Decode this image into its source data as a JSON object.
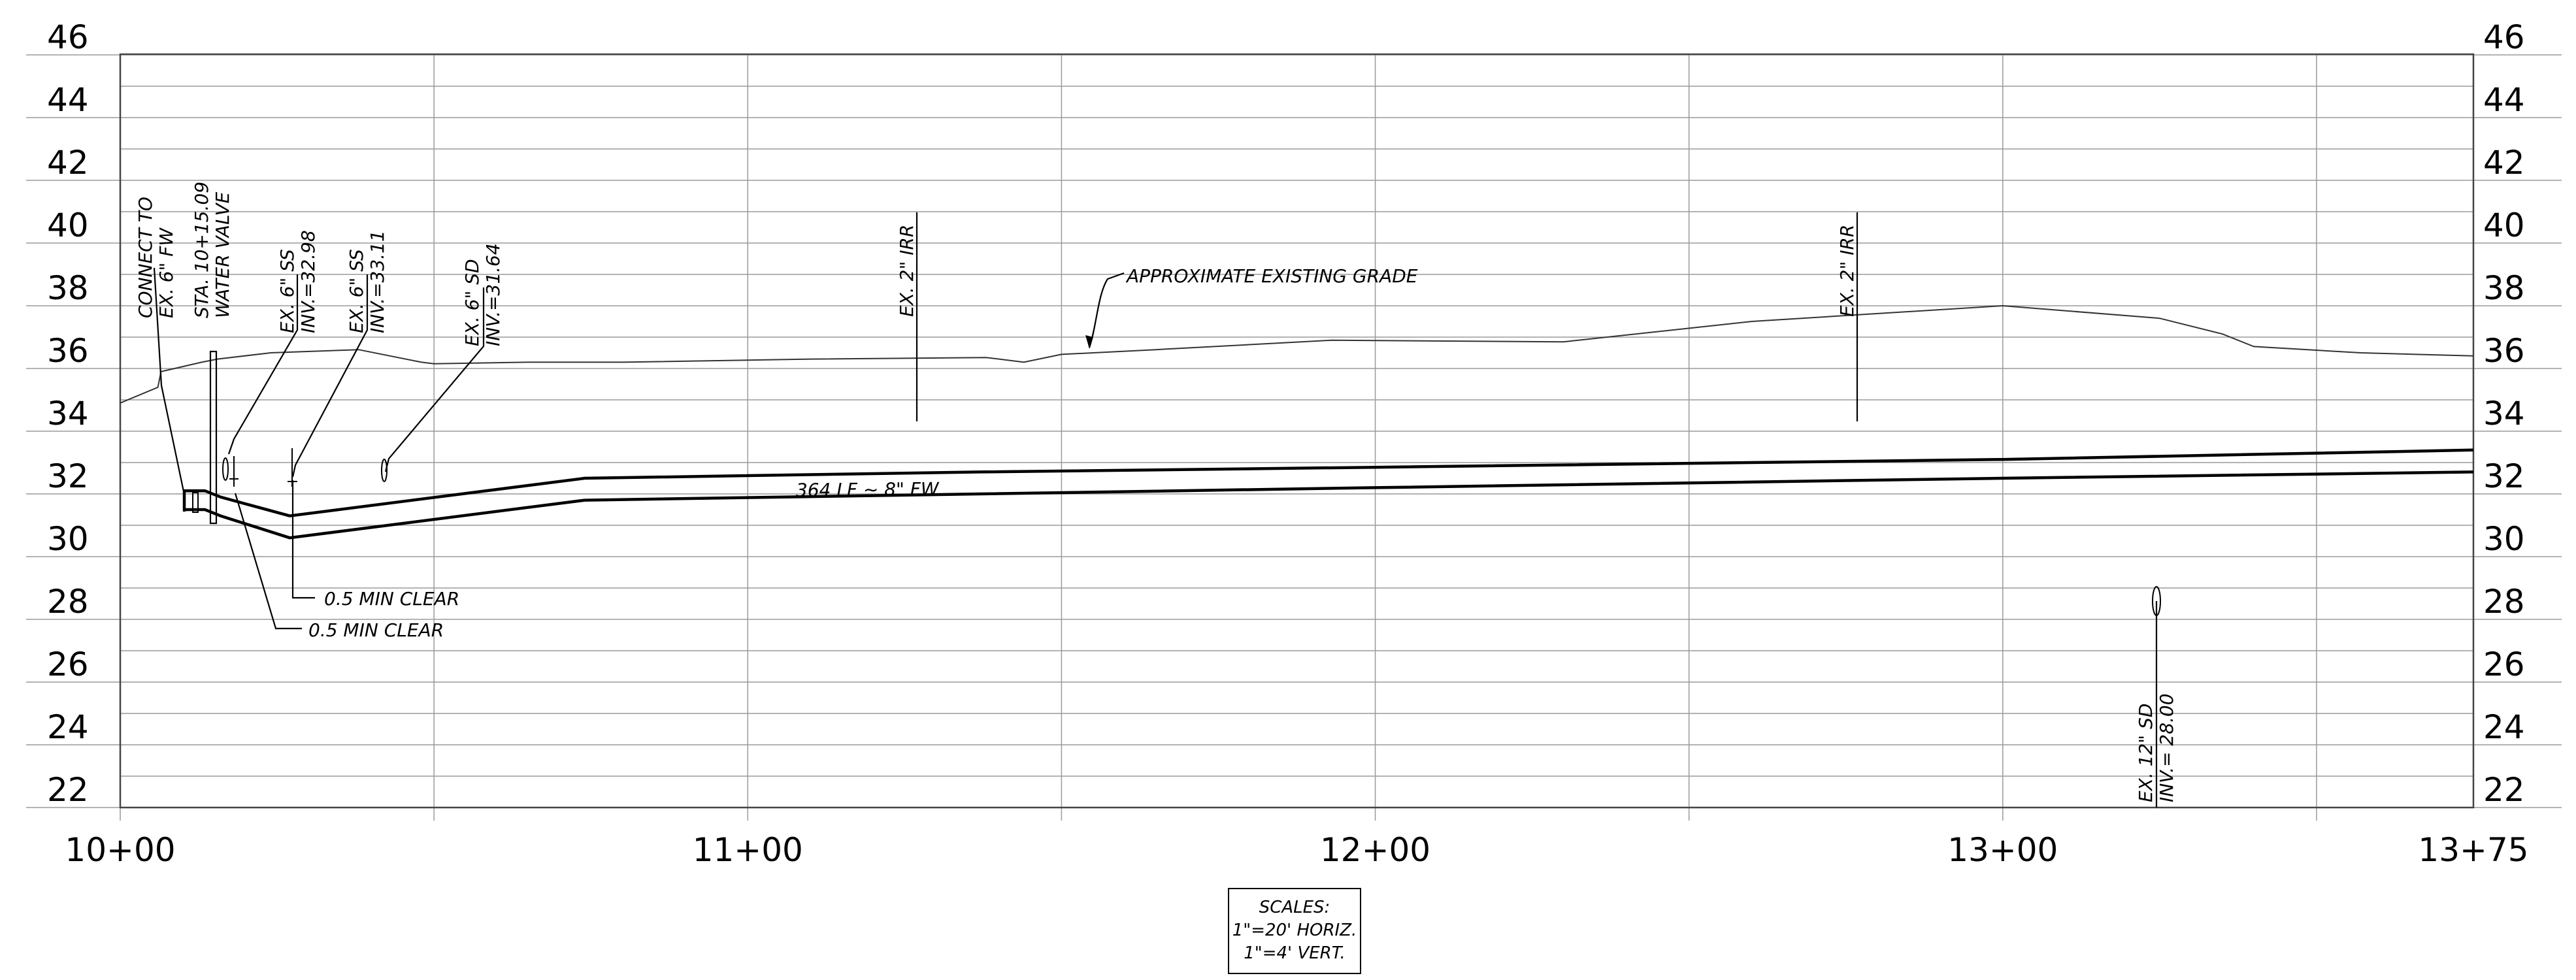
{
  "drawing": {
    "type": "pipe-profile",
    "elevation_labels": [
      "46",
      "44",
      "42",
      "40",
      "38",
      "36",
      "34",
      "32",
      "30",
      "28",
      "26",
      "24",
      "22"
    ],
    "station_labels": [
      "10+00",
      "11+00",
      "12+00",
      "13+00",
      "13+75"
    ],
    "grid": true
  },
  "chart_data": {
    "type": "line",
    "xlim": [
      1000,
      1375
    ],
    "ylim": [
      21,
      46
    ],
    "x_tick_labels": [
      "10+00",
      "11+00",
      "12+00",
      "13+00",
      "13+75"
    ],
    "y_ticks": [
      46,
      44,
      42,
      40,
      38,
      36,
      34,
      32,
      30,
      28,
      26,
      24,
      22
    ],
    "series": [
      {
        "name": "APPROXIMATE EXISTING GRADE",
        "x": [
          1000,
          1006,
          1006.5,
          1013,
          1015.5,
          1024,
          1038,
          1048,
          1050,
          1065,
          1080,
          1110,
          1138,
          1144,
          1150,
          1165,
          1193,
          1230,
          1260,
          1300,
          1325,
          1335,
          1340,
          1357,
          1375
        ],
        "y": [
          34.9,
          35.4,
          35.9,
          36.2,
          36.3,
          36.5,
          36.6,
          36.2,
          36.15,
          36.2,
          36.2,
          36.3,
          36.35,
          36.2,
          36.45,
          36.6,
          36.9,
          36.85,
          37.5,
          38.0,
          37.6,
          37.1,
          36.7,
          36.5,
          36.4
        ]
      },
      {
        "name": "364 LF ~ 8\" FW",
        "x": [
          1010,
          1012.5,
          1013.5,
          1016,
          1027,
          1074,
          1137,
          1200,
          1300,
          1375
        ],
        "y": [
          32.1,
          32.1,
          32.1,
          31.9,
          31.3,
          32.5,
          32.7,
          32.85,
          33.1,
          33.4
        ]
      },
      {
        "name": "364 LF ~ 8\" FW",
        "x": [
          1010,
          1012.5,
          1013.5,
          1016,
          1027,
          1074,
          1137,
          1200,
          1300,
          1375
        ],
        "y": [
          31.5,
          31.5,
          31.5,
          31.3,
          30.6,
          31.8,
          32.0,
          32.2,
          32.5,
          32.7
        ]
      }
    ]
  },
  "annotations": {
    "connect_line1": "CONNECT TO",
    "connect_line2": "EX. 6\" FW",
    "valve_line1": "STA. 10+15.09",
    "valve_line2": "WATER VALVE",
    "ss1_line1": "EX. 6\" SS",
    "ss1_line2": "INV.=32.98",
    "ss2_line1": "EX. 6\" SS",
    "ss2_line2": "INV.=33.11",
    "sd1_line1": "EX. 6\" SD",
    "sd1_line2": "INV.=31.64",
    "irr1": "EX. 2\" IRR",
    "irr2": "EX. 2\" IRR",
    "grade_label": "APPROXIMATE EXISTING GRADE",
    "pipe_label": "364 LF ~ 8\" FW",
    "clear1": "0.5 MIN CLEAR",
    "clear2": "0.5 MIN CLEAR",
    "sd2_line1": "EX. 12\" SD",
    "sd2_line2": "INV.= 28.00"
  },
  "scales": {
    "title": "SCALES:",
    "horizontal": "1\"=20' HORIZ.",
    "vertical": "1\"=4' VERT."
  }
}
